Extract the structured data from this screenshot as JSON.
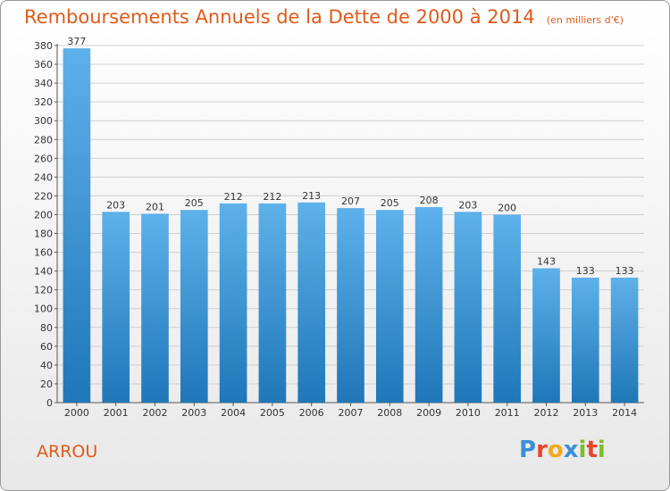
{
  "chart_title": "Remboursements Annuels de la Dette de 2000 à 2014",
  "chart_subtitle": "(en milliers d'€)",
  "town": "ARROU",
  "logo": {
    "text": "Proxiti",
    "letters": [
      {
        "ch": "P",
        "color": "#3a8fd8"
      },
      {
        "ch": "r",
        "color": "#e8452c"
      },
      {
        "ch": "o",
        "color": "#f2a81d"
      },
      {
        "ch": "x",
        "color": "#3a8fd8"
      },
      {
        "ch": "i",
        "color": "#7cbd2a"
      },
      {
        "ch": "t",
        "color": "#e8452c"
      },
      {
        "ch": "i",
        "color": "#7cbd2a"
      }
    ]
  },
  "colors": {
    "title": "#e05a1c",
    "bar_top": "#5eb1ea",
    "bar_bottom": "#1f77b8",
    "grid": "#cfcfcf"
  },
  "chart_data": {
    "type": "bar",
    "title": "Remboursements Annuels de la Dette de 2000 à 2014",
    "subtitle": "(en milliers d'€)",
    "categories": [
      "2000",
      "2001",
      "2002",
      "2003",
      "2004",
      "2005",
      "2006",
      "2007",
      "2008",
      "2009",
      "2010",
      "2011",
      "2012",
      "2013",
      "2014"
    ],
    "values": [
      377,
      203,
      201,
      205,
      212,
      212,
      213,
      207,
      205,
      208,
      203,
      200,
      143,
      133,
      133
    ],
    "ylim": [
      0,
      380
    ],
    "yticks": [
      0,
      20,
      40,
      60,
      80,
      100,
      120,
      140,
      160,
      180,
      200,
      220,
      240,
      260,
      280,
      300,
      320,
      340,
      360,
      380
    ],
    "grid": true,
    "data_labels": true
  }
}
